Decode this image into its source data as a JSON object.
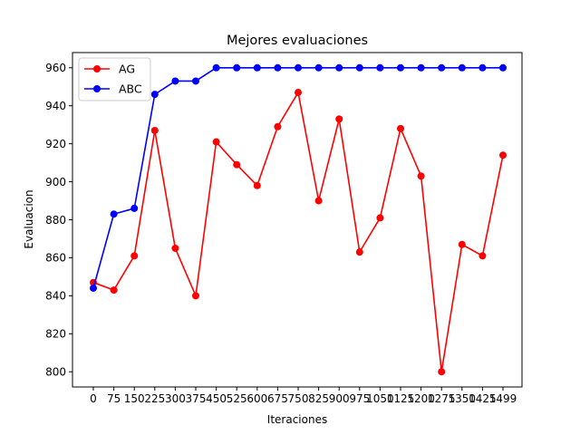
{
  "chart_data": {
    "type": "line",
    "title": "Mejores evaluaciones",
    "xlabel": "Iteraciones",
    "ylabel": "Evaluacion",
    "categories": [
      "0",
      "75",
      "150",
      "225",
      "300",
      "375",
      "450",
      "525",
      "600",
      "675",
      "750",
      "825",
      "900",
      "975",
      "1050",
      "1125",
      "1200",
      "1275",
      "1350",
      "1425",
      "1499"
    ],
    "series": [
      {
        "name": "AG",
        "color": "#ff0000",
        "values": [
          847,
          843,
          861,
          927,
          865,
          840,
          921,
          909,
          898,
          929,
          947,
          890,
          933,
          863,
          881,
          928,
          903,
          800,
          867,
          861,
          914
        ]
      },
      {
        "name": "ABC",
        "color": "#0000ff",
        "values": [
          844,
          883,
          886,
          946,
          953,
          953,
          960,
          960,
          960,
          960,
          960,
          960,
          960,
          960,
          960,
          960,
          960,
          960,
          960,
          960,
          960
        ]
      }
    ],
    "ylim": [
      792,
      968
    ],
    "yticks": [
      800,
      820,
      840,
      860,
      880,
      900,
      920,
      940,
      960
    ],
    "grid": false,
    "legend_position": "top-left"
  }
}
